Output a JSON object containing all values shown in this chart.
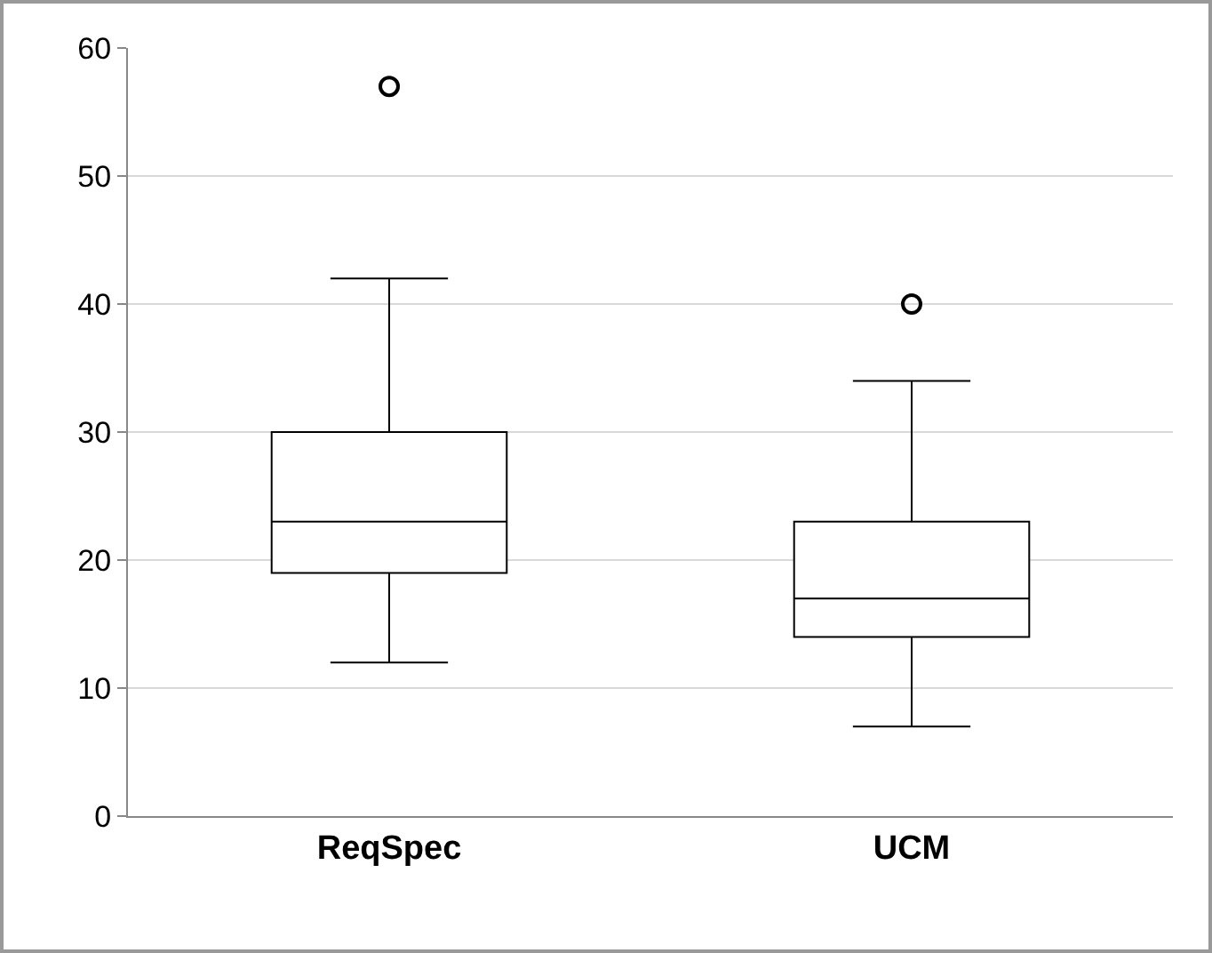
{
  "chart_data": {
    "type": "box",
    "categories": [
      "ReqSpec",
      "UCM"
    ],
    "boxes": [
      {
        "low": 12,
        "q1": 19,
        "median": 23,
        "q3": 30,
        "high": 42,
        "outliers": [
          57
        ]
      },
      {
        "low": 7,
        "q1": 14,
        "median": 17,
        "q3": 23,
        "high": 34,
        "outliers": [
          40
        ]
      }
    ],
    "color": "#000000",
    "ylim": [
      0,
      60
    ],
    "yticks": [
      0,
      10,
      20,
      30,
      40,
      50,
      60
    ],
    "grid": "y",
    "legend": false
  }
}
